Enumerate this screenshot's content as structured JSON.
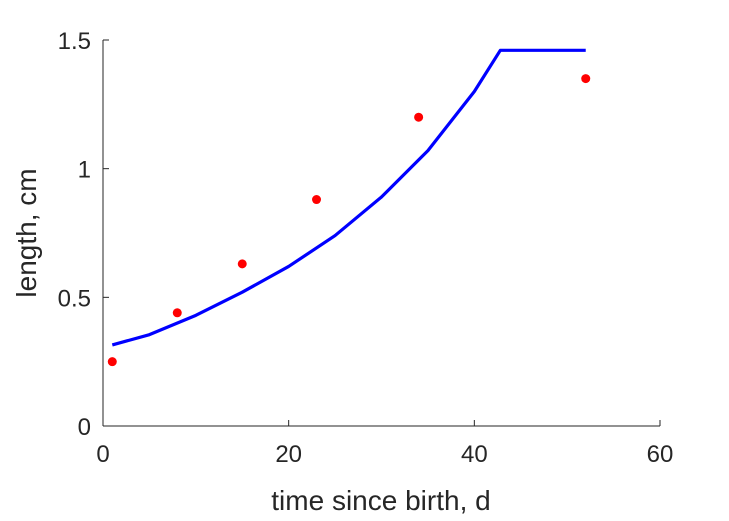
{
  "chart_data": {
    "type": "line",
    "title": "",
    "xlabel": "time since birth, d",
    "ylabel": "length, cm",
    "xlim": [
      0,
      60
    ],
    "ylim": [
      0,
      1.5
    ],
    "xticks": [
      0,
      20,
      40,
      60
    ],
    "xtick_labels": [
      "0",
      "20",
      "40",
      "60"
    ],
    "yticks": [
      0,
      0.5,
      1,
      1.5
    ],
    "ytick_labels": [
      "0",
      "0.5",
      "1",
      "1.5"
    ],
    "grid": false,
    "colors": {
      "model": "#0000ff",
      "data": "#ff0000",
      "axis": "#262626"
    },
    "series": [
      {
        "kind": "line",
        "x": [
          1,
          5,
          10,
          15,
          20,
          25,
          30,
          35,
          40,
          42.8,
          52
        ],
        "y": [
          0.315,
          0.355,
          0.43,
          0.52,
          0.62,
          0.74,
          0.89,
          1.07,
          1.3,
          1.46,
          1.46
        ]
      },
      {
        "kind": "scatter",
        "x": [
          1,
          8,
          15,
          23,
          34,
          52
        ],
        "y": [
          0.25,
          0.44,
          0.63,
          0.88,
          1.2,
          1.35
        ]
      }
    ]
  }
}
